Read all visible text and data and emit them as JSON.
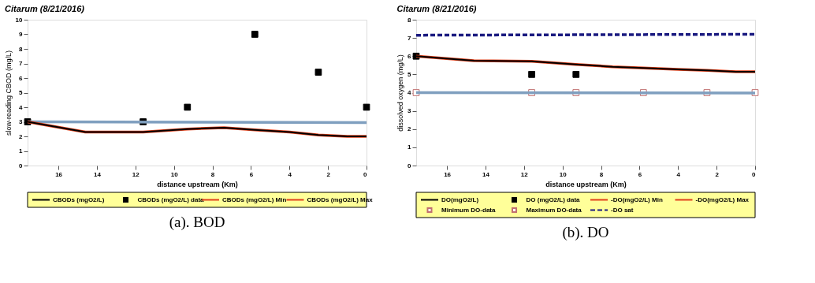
{
  "chart_data": [
    {
      "type": "line",
      "title": "Citarum (8/21/2016)",
      "xlabel": "distance upstream (Km)",
      "ylabel": "slow-reading CBOD (mg/L)",
      "xlim": [
        17.6,
        0
      ],
      "xticks": [
        16,
        14,
        12,
        10,
        8,
        6,
        4,
        2,
        0
      ],
      "ylim": [
        0,
        10
      ],
      "yticks": [
        0,
        1,
        2,
        3,
        4,
        5,
        6,
        7,
        8,
        9,
        10
      ],
      "legend": "bottom",
      "annotations": [
        "(a). BOD"
      ],
      "series": [
        {
          "name": "CBODs (mgO2/L)",
          "color": "#000000",
          "x": [
            17.6,
            14.6,
            11.6,
            9.3,
            7.4,
            5.8,
            4,
            2.5,
            1,
            0
          ],
          "values": [
            3,
            2.3,
            2.3,
            2.5,
            2.6,
            2.45,
            2.3,
            2.1,
            2.0,
            2.0
          ]
        },
        {
          "name": "CBODs (mgO2/L) data",
          "type": "scatter",
          "marker": "square",
          "color": "#000000",
          "x": [
            17.6,
            11.6,
            9.3,
            5.8,
            2.5,
            0
          ],
          "values": [
            3,
            3,
            4,
            9,
            6.4,
            4
          ]
        },
        {
          "name": "CBODs (mgO2/L) Min",
          "color": "#e0401a",
          "x": [
            17.6,
            14.6,
            11.6,
            9.3,
            7.4,
            5.8,
            4,
            2.5,
            1,
            0
          ],
          "values": [
            3,
            2.3,
            2.3,
            2.5,
            2.6,
            2.45,
            2.3,
            2.1,
            2.0,
            2.0
          ]
        },
        {
          "name": "CBODs (mgO2/L) Max",
          "color": "#e0401a"
        },
        {
          "color": "#7f9fbf",
          "x": [
            17.6,
            0
          ],
          "values": [
            3,
            2.95
          ]
        }
      ]
    },
    {
      "type": "line",
      "title": "Citarum (8/21/2016)",
      "xlabel": "distance upstream (Km)",
      "ylabel": "dissolved oxygen (mg/L)",
      "xlim": [
        17.6,
        0
      ],
      "xticks": [
        16,
        14,
        12,
        10,
        8,
        6,
        4,
        2,
        0
      ],
      "ylim": [
        0,
        8
      ],
      "yticks": [
        0,
        1,
        2,
        3,
        4,
        5,
        6,
        7,
        8
      ],
      "legend": "bottom",
      "annotations": [
        "(b). DO"
      ],
      "series": [
        {
          "name": "DO(mgO2/L)",
          "color": "#000000",
          "x": [
            17.6,
            14.6,
            11.6,
            9.3,
            7.4,
            5.8,
            4,
            2.5,
            1,
            0
          ],
          "values": [
            6.0,
            5.75,
            5.72,
            5.55,
            5.42,
            5.35,
            5.28,
            5.22,
            5.15,
            5.15
          ]
        },
        {
          "name": "DO (mgO2/L) data",
          "type": "scatter",
          "marker": "square",
          "color": "#000000",
          "x": [
            17.6,
            11.6,
            9.3
          ],
          "values": [
            6,
            5,
            5
          ]
        },
        {
          "name": "-DO(mgO2/L) Min",
          "color": "#e0401a",
          "x": [
            17.6,
            14.6,
            11.6,
            9.3,
            7.4,
            5.8,
            4,
            2.5,
            1,
            0
          ],
          "values": [
            6.0,
            5.75,
            5.72,
            5.55,
            5.42,
            5.35,
            5.28,
            5.22,
            5.15,
            5.15
          ]
        },
        {
          "name": "-DO(mgO2/L) Max",
          "color": "#e0401a"
        },
        {
          "name": "Minimum DO-data",
          "type": "scatter",
          "marker": "square",
          "color": "#c07070",
          "x": [
            17.6,
            11.6,
            9.3,
            5.8,
            2.5,
            0
          ],
          "values": [
            4,
            4,
            4,
            4,
            4,
            4
          ]
        },
        {
          "name": "Maximum DO-data",
          "type": "scatter",
          "marker": "square",
          "color": "#c07070"
        },
        {
          "name": "-DO sat",
          "line_style": "dashed",
          "color": "#1a1a80",
          "x": [
            17.6,
            0
          ],
          "values": [
            7.15,
            7.2
          ]
        },
        {
          "color": "#7f9fbf",
          "x": [
            17.6,
            0
          ],
          "values": [
            4,
            3.98
          ]
        }
      ]
    }
  ]
}
